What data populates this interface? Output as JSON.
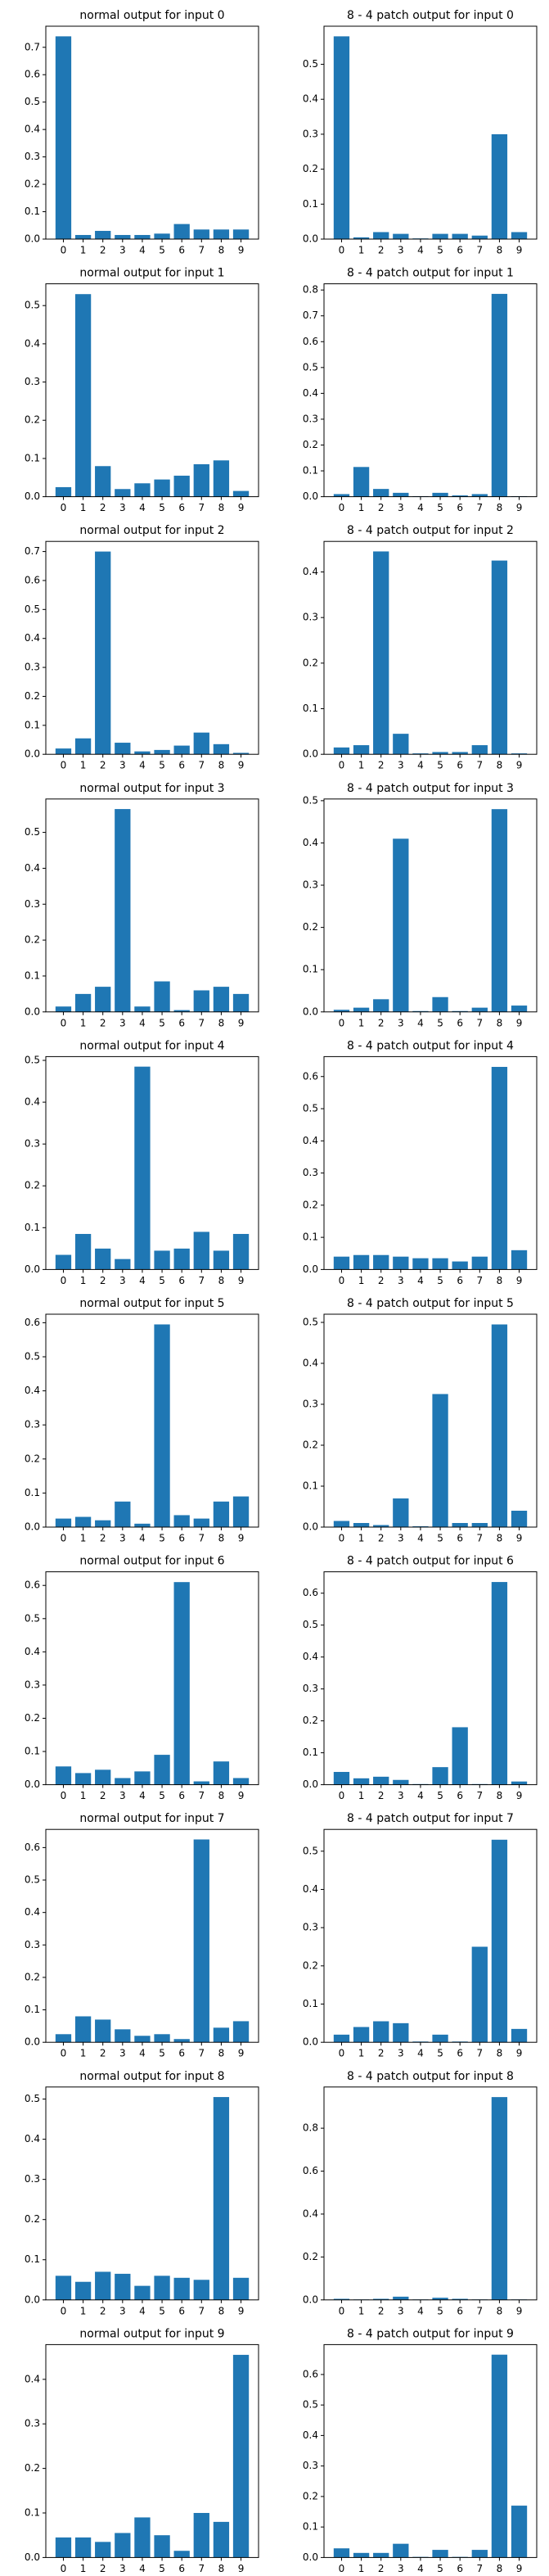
{
  "chart_data": [
    {
      "type": "bar",
      "title": "normal output for input 0",
      "categories": [
        "0",
        "1",
        "2",
        "3",
        "4",
        "5",
        "6",
        "7",
        "8",
        "9"
      ],
      "values": [
        0.74,
        0.015,
        0.03,
        0.015,
        0.015,
        0.02,
        0.055,
        0.035,
        0.035,
        0.035
      ],
      "color": "#1f77b4",
      "ylim": [
        0,
        0.777
      ],
      "yticks": [
        {
          "value": 0,
          "label": "0.0"
        },
        0.1,
        0.2,
        0.3,
        0.4,
        0.5,
        0.6,
        0.7
      ]
    },
    {
      "type": "bar",
      "title": "8 - 4 patch output for input 0",
      "categories": [
        "0",
        "1",
        "2",
        "3",
        "4",
        "5",
        "6",
        "7",
        "8",
        "9"
      ],
      "values": [
        0.58,
        0.005,
        0.02,
        0.015,
        0.002,
        0.015,
        0.015,
        0.01,
        0.3,
        0.02
      ],
      "color": "#1f77b4",
      "ylim": [
        0,
        0.609
      ],
      "yticks": [
        {
          "value": 0,
          "label": "0.0"
        },
        0.1,
        0.2,
        0.3,
        0.4,
        0.5
      ]
    },
    {
      "type": "bar",
      "title": "normal output for input 1",
      "categories": [
        "0",
        "1",
        "2",
        "3",
        "4",
        "5",
        "6",
        "7",
        "8",
        "9"
      ],
      "values": [
        0.025,
        0.53,
        0.08,
        0.02,
        0.035,
        0.045,
        0.055,
        0.085,
        0.095,
        0.015
      ],
      "color": "#1f77b4",
      "ylim": [
        0,
        0.557
      ],
      "yticks": [
        {
          "value": 0,
          "label": "0.0"
        },
        0.1,
        0.2,
        0.3,
        0.4,
        0.5
      ]
    },
    {
      "type": "bar",
      "title": "8 - 4 patch output for input 1",
      "categories": [
        "0",
        "1",
        "2",
        "3",
        "4",
        "5",
        "6",
        "7",
        "8",
        "9"
      ],
      "values": [
        0.01,
        0.115,
        0.03,
        0.015,
        0.002,
        0.015,
        0.005,
        0.01,
        0.785,
        0.002
      ],
      "color": "#1f77b4",
      "ylim": [
        0,
        0.824
      ],
      "yticks": [
        {
          "value": 0,
          "label": "0.0"
        },
        0.1,
        0.2,
        0.3,
        0.4,
        0.5,
        0.6,
        0.7,
        0.8
      ]
    },
    {
      "type": "bar",
      "title": "normal output for input 2",
      "categories": [
        "0",
        "1",
        "2",
        "3",
        "4",
        "5",
        "6",
        "7",
        "8",
        "9"
      ],
      "values": [
        0.02,
        0.055,
        0.7,
        0.04,
        0.01,
        0.015,
        0.03,
        0.075,
        0.035,
        0.005
      ],
      "color": "#1f77b4",
      "ylim": [
        0,
        0.735
      ],
      "yticks": [
        {
          "value": 0,
          "label": "0.0"
        },
        0.1,
        0.2,
        0.3,
        0.4,
        0.5,
        0.6,
        0.7
      ]
    },
    {
      "type": "bar",
      "title": "8 - 4 patch output for input 2",
      "categories": [
        "0",
        "1",
        "2",
        "3",
        "4",
        "5",
        "6",
        "7",
        "8",
        "9"
      ],
      "values": [
        0.015,
        0.02,
        0.445,
        0.045,
        0.002,
        0.005,
        0.005,
        0.02,
        0.425,
        0.002
      ],
      "color": "#1f77b4",
      "ylim": [
        0,
        0.467
      ],
      "yticks": [
        {
          "value": 0,
          "label": "0.0"
        },
        0.1,
        0.2,
        0.3,
        0.4
      ]
    },
    {
      "type": "bar",
      "title": "normal output for input 3",
      "categories": [
        "0",
        "1",
        "2",
        "3",
        "4",
        "5",
        "6",
        "7",
        "8",
        "9"
      ],
      "values": [
        0.015,
        0.05,
        0.07,
        0.565,
        0.015,
        0.085,
        0.005,
        0.06,
        0.07,
        0.05
      ],
      "color": "#1f77b4",
      "ylim": [
        0,
        0.593
      ],
      "yticks": [
        {
          "value": 0,
          "label": "0.0"
        },
        0.1,
        0.2,
        0.3,
        0.4,
        0.5
      ]
    },
    {
      "type": "bar",
      "title": "8 - 4 patch output for input 3",
      "categories": [
        "0",
        "1",
        "2",
        "3",
        "4",
        "5",
        "6",
        "7",
        "8",
        "9"
      ],
      "values": [
        0.005,
        0.01,
        0.03,
        0.41,
        0.002,
        0.035,
        0.002,
        0.01,
        0.48,
        0.015
      ],
      "color": "#1f77b4",
      "ylim": [
        0,
        0.504
      ],
      "yticks": [
        {
          "value": 0,
          "label": "0.0"
        },
        0.1,
        0.2,
        0.3,
        0.4,
        0.5
      ]
    },
    {
      "type": "bar",
      "title": "normal output for input 4",
      "categories": [
        "0",
        "1",
        "2",
        "3",
        "4",
        "5",
        "6",
        "7",
        "8",
        "9"
      ],
      "values": [
        0.035,
        0.085,
        0.05,
        0.025,
        0.485,
        0.045,
        0.05,
        0.09,
        0.045,
        0.085
      ],
      "color": "#1f77b4",
      "ylim": [
        0,
        0.509
      ],
      "yticks": [
        {
          "value": 0,
          "label": "0.0"
        },
        0.1,
        0.2,
        0.3,
        0.4,
        0.5
      ]
    },
    {
      "type": "bar",
      "title": "8 - 4 patch output for input 4",
      "categories": [
        "0",
        "1",
        "2",
        "3",
        "4",
        "5",
        "6",
        "7",
        "8",
        "9"
      ],
      "values": [
        0.04,
        0.045,
        0.045,
        0.04,
        0.035,
        0.035,
        0.025,
        0.04,
        0.63,
        0.06
      ],
      "color": "#1f77b4",
      "ylim": [
        0,
        0.662
      ],
      "yticks": [
        {
          "value": 0,
          "label": "0.0"
        },
        0.1,
        0.2,
        0.3,
        0.4,
        0.5,
        0.6
      ]
    },
    {
      "type": "bar",
      "title": "normal output for input 5",
      "categories": [
        "0",
        "1",
        "2",
        "3",
        "4",
        "5",
        "6",
        "7",
        "8",
        "9"
      ],
      "values": [
        0.025,
        0.03,
        0.02,
        0.075,
        0.01,
        0.595,
        0.035,
        0.025,
        0.075,
        0.09
      ],
      "color": "#1f77b4",
      "ylim": [
        0,
        0.625
      ],
      "yticks": [
        {
          "value": 0,
          "label": "0.0"
        },
        0.1,
        0.2,
        0.3,
        0.4,
        0.5,
        0.6
      ]
    },
    {
      "type": "bar",
      "title": "8 - 4 patch output for input 5",
      "categories": [
        "0",
        "1",
        "2",
        "3",
        "4",
        "5",
        "6",
        "7",
        "8",
        "9"
      ],
      "values": [
        0.015,
        0.01,
        0.005,
        0.07,
        0.002,
        0.325,
        0.01,
        0.01,
        0.495,
        0.04
      ],
      "color": "#1f77b4",
      "ylim": [
        0,
        0.52
      ],
      "yticks": [
        {
          "value": 0,
          "label": "0.0"
        },
        0.1,
        0.2,
        0.3,
        0.4,
        0.5
      ]
    },
    {
      "type": "bar",
      "title": "normal output for input 6",
      "categories": [
        "0",
        "1",
        "2",
        "3",
        "4",
        "5",
        "6",
        "7",
        "8",
        "9"
      ],
      "values": [
        0.055,
        0.035,
        0.045,
        0.02,
        0.04,
        0.09,
        0.61,
        0.01,
        0.07,
        0.02
      ],
      "color": "#1f77b4",
      "ylim": [
        0,
        0.641
      ],
      "yticks": [
        {
          "value": 0,
          "label": "0.0"
        },
        0.1,
        0.2,
        0.3,
        0.4,
        0.5,
        0.6
      ]
    },
    {
      "type": "bar",
      "title": "8 - 4 patch output for input 6",
      "categories": [
        "0",
        "1",
        "2",
        "3",
        "4",
        "5",
        "6",
        "7",
        "8",
        "9"
      ],
      "values": [
        0.04,
        0.02,
        0.025,
        0.015,
        0.002,
        0.055,
        0.18,
        0.002,
        0.635,
        0.01
      ],
      "color": "#1f77b4",
      "ylim": [
        0,
        0.667
      ],
      "yticks": [
        {
          "value": 0,
          "label": "0.0"
        },
        0.1,
        0.2,
        0.3,
        0.4,
        0.5,
        0.6
      ]
    },
    {
      "type": "bar",
      "title": "normal output for input 7",
      "categories": [
        "0",
        "1",
        "2",
        "3",
        "4",
        "5",
        "6",
        "7",
        "8",
        "9"
      ],
      "values": [
        0.025,
        0.08,
        0.07,
        0.04,
        0.02,
        0.025,
        0.01,
        0.625,
        0.045,
        0.065
      ],
      "color": "#1f77b4",
      "ylim": [
        0,
        0.656
      ],
      "yticks": [
        {
          "value": 0,
          "label": "0.0"
        },
        0.1,
        0.2,
        0.3,
        0.4,
        0.5,
        0.6
      ]
    },
    {
      "type": "bar",
      "title": "8 - 4 patch output for input 7",
      "categories": [
        "0",
        "1",
        "2",
        "3",
        "4",
        "5",
        "6",
        "7",
        "8",
        "9"
      ],
      "values": [
        0.02,
        0.04,
        0.055,
        0.05,
        0.002,
        0.02,
        0.002,
        0.25,
        0.53,
        0.035
      ],
      "color": "#1f77b4",
      "ylim": [
        0,
        0.557
      ],
      "yticks": [
        {
          "value": 0,
          "label": "0.0"
        },
        0.1,
        0.2,
        0.3,
        0.4,
        0.5
      ]
    },
    {
      "type": "bar",
      "title": "normal output for input 8",
      "categories": [
        "0",
        "1",
        "2",
        "3",
        "4",
        "5",
        "6",
        "7",
        "8",
        "9"
      ],
      "values": [
        0.06,
        0.045,
        0.07,
        0.065,
        0.035,
        0.06,
        0.055,
        0.05,
        0.505,
        0.055
      ],
      "color": "#1f77b4",
      "ylim": [
        0,
        0.53
      ],
      "yticks": [
        {
          "value": 0,
          "label": "0.0"
        },
        0.1,
        0.2,
        0.3,
        0.4,
        0.5
      ]
    },
    {
      "type": "bar",
      "title": "8 - 4 patch output for input 8",
      "categories": [
        "0",
        "1",
        "2",
        "3",
        "4",
        "5",
        "6",
        "7",
        "8",
        "9"
      ],
      "values": [
        0.005,
        0.002,
        0.005,
        0.015,
        0.002,
        0.01,
        0.005,
        0.002,
        0.945,
        0.002
      ],
      "color": "#1f77b4",
      "ylim": [
        0,
        0.992
      ],
      "yticks": [
        {
          "value": 0,
          "label": "0.0"
        },
        0.2,
        0.4,
        0.6,
        0.8
      ]
    },
    {
      "type": "bar",
      "title": "normal output for input 9",
      "categories": [
        "0",
        "1",
        "2",
        "3",
        "4",
        "5",
        "6",
        "7",
        "8",
        "9"
      ],
      "values": [
        0.045,
        0.045,
        0.035,
        0.055,
        0.09,
        0.05,
        0.015,
        0.1,
        0.08,
        0.455
      ],
      "color": "#1f77b4",
      "ylim": [
        0,
        0.478
      ],
      "yticks": [
        {
          "value": 0,
          "label": "0.0"
        },
        0.1,
        0.2,
        0.3,
        0.4
      ]
    },
    {
      "type": "bar",
      "title": "8 - 4 patch output for input 9",
      "categories": [
        "0",
        "1",
        "2",
        "3",
        "4",
        "5",
        "6",
        "7",
        "8",
        "9"
      ],
      "values": [
        0.03,
        0.015,
        0.015,
        0.045,
        0.002,
        0.025,
        0.002,
        0.025,
        0.665,
        0.17
      ],
      "color": "#1f77b4",
      "ylim": [
        0,
        0.698
      ],
      "yticks": [
        {
          "value": 0,
          "label": "0.0"
        },
        0.1,
        0.2,
        0.3,
        0.4,
        0.5,
        0.6
      ]
    }
  ]
}
